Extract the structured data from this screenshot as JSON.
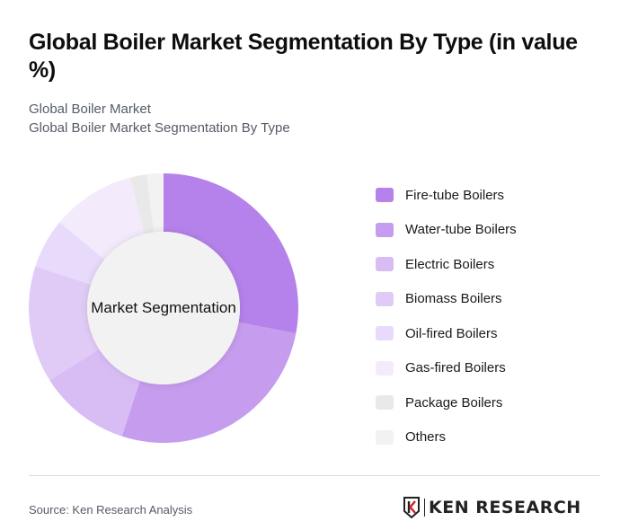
{
  "header": {
    "title": "Global Boiler Market Segmentation By Type (in value %)",
    "subtitle_line1": "Global Boiler Market",
    "subtitle_line2": "Global Boiler Market Segmentation By Type"
  },
  "chart": {
    "center_label": "Market Segmentation"
  },
  "legend": {
    "items": [
      {
        "label": "Fire-tube Boilers",
        "color": "#b482ea"
      },
      {
        "label": "Water-tube Boilers",
        "color": "#c69cee"
      },
      {
        "label": "Electric Boilers",
        "color": "#d8bdf5"
      },
      {
        "label": "Biomass Boilers",
        "color": "#e0cbf6"
      },
      {
        "label": "Oil-fired Boilers",
        "color": "#e8dafa"
      },
      {
        "label": "Gas-fired Boilers",
        "color": "#f3ebfc"
      },
      {
        "label": "Package Boilers",
        "color": "#e9e9e9"
      },
      {
        "label": "Others",
        "color": "#f2f2f2"
      }
    ]
  },
  "footer": {
    "source": "Source: Ken Research Analysis",
    "logo_text": "KEN RESEARCH"
  },
  "chart_data": {
    "type": "pie",
    "donut": true,
    "title": "Global Boiler Market Segmentation By Type (in value %)",
    "subtitle": "Global Boiler Market Segmentation By Type",
    "center_label": "Market Segmentation",
    "categories": [
      "Fire-tube Boilers",
      "Water-tube Boilers",
      "Electric Boilers",
      "Biomass Boilers",
      "Oil-fired Boilers",
      "Gas-fired Boilers",
      "Package Boilers",
      "Others"
    ],
    "values": [
      28,
      27,
      11,
      14,
      6,
      10,
      2,
      2
    ],
    "colors": [
      "#b482ea",
      "#c69cee",
      "#d8bdf5",
      "#e0cbf6",
      "#e8dafa",
      "#f3ebfc",
      "#e9e9e9",
      "#f2f2f2"
    ],
    "start_angle": "top, clockwise",
    "legend_position": "right",
    "source": "Source: Ken Research Analysis"
  }
}
